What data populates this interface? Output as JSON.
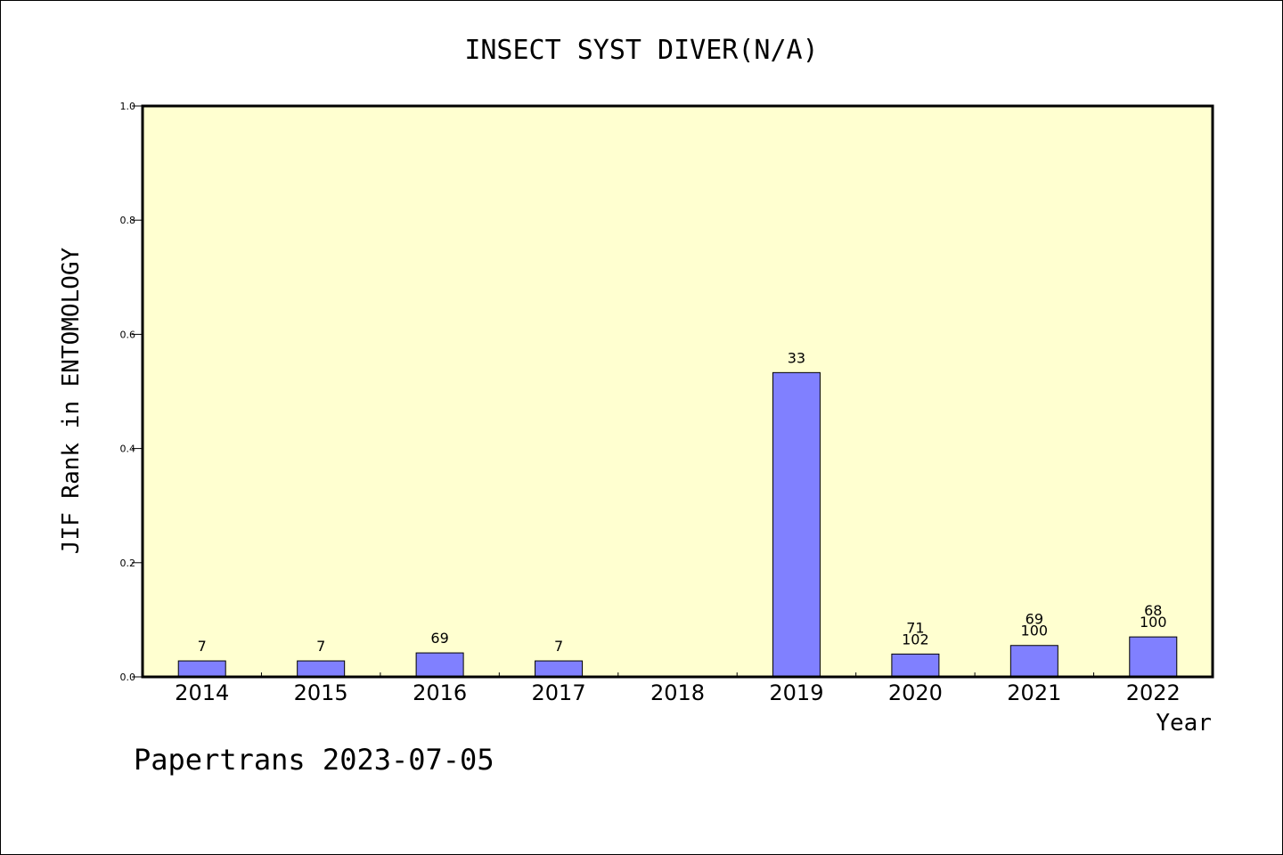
{
  "chart_data": {
    "type": "bar",
    "title": "INSECT SYST DIVER(N/A)",
    "xlabel": "Year",
    "ylabel": "JIF Rank in ENTOMOLOGY",
    "ylim": [
      0.0,
      1.0
    ],
    "yticks": [
      "0.0",
      "0.2",
      "0.4",
      "0.6",
      "0.8",
      "1.0"
    ],
    "categories": [
      "2014",
      "2015",
      "2016",
      "2017",
      "2018",
      "2019",
      "2020",
      "2021",
      "2022"
    ],
    "values": [
      0.028,
      0.028,
      0.042,
      0.028,
      null,
      0.533,
      0.04,
      0.055,
      0.07
    ],
    "labels": [
      [
        "7"
      ],
      [
        "7"
      ],
      [
        "69"
      ],
      [
        "7"
      ],
      [],
      [
        "33"
      ],
      [
        "71",
        "102"
      ],
      [
        "69",
        "100"
      ],
      [
        "68",
        "100"
      ]
    ],
    "grid": false,
    "colors": {
      "plot_background": "#ffffd0",
      "bar_fill": "#8080ff",
      "bar_stroke": "#000000",
      "frame": "#000000"
    }
  },
  "footer": {
    "watermark": "Papertrans 2023-07-05"
  }
}
